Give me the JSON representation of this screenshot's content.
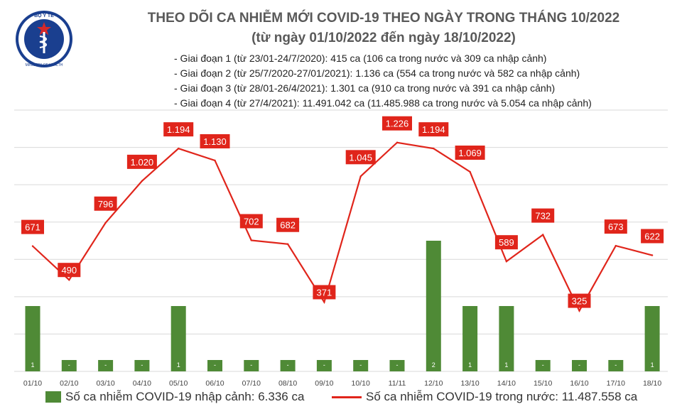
{
  "header": {
    "title_line1": "THEO DÕI CA NHIỄM MỚI COVID-19 THEO NGÀY TRONG THÁNG 10/2022",
    "title_line2": "(từ ngày 01/10/2022 đến ngày 18/10/2022)",
    "notes": [
      "- Giai đoạn 1 (từ 23/01-24/7/2020): 415 ca (106 ca trong nước và 309 ca nhập cảnh)",
      "- Giai đoạn 2 (từ 25/7/2020-27/01/2021): 1.136 ca (554 ca trong nước và 582 ca nhập cảnh)",
      "- Giai đoạn 3 (từ 28/01-26/4/2021): 1.301 ca (910 ca trong nước và 391 ca nhập cảnh)",
      "- Giai đoạn 4 (từ 27/4/2021): 11.491.042 ca (11.485.988 ca trong nước và 5.054 ca nhập cảnh)"
    ]
  },
  "logo": {
    "top_text": "BỘ Y TẾ",
    "bottom_text": "MINISTRY OF HEALTH"
  },
  "chart_data": {
    "type": "bar",
    "categories": [
      "01/10",
      "02/10",
      "03/10",
      "04/10",
      "05/10",
      "06/10",
      "07/10",
      "08/10",
      "09/10",
      "10/10",
      "11/11",
      "12/10",
      "13/10",
      "14/10",
      "15/10",
      "16/10",
      "17/10",
      "18/10"
    ],
    "series": [
      {
        "name": "Số ca nhiễm COVID-19 nhập cảnh: 6.336 ca",
        "type": "bar",
        "axis": "right",
        "values": [
          1,
          0,
          0,
          0,
          1,
          0,
          0,
          0,
          0,
          0,
          0,
          2,
          1,
          1,
          0,
          0,
          0,
          1
        ],
        "labels": [
          "1",
          "-",
          "-",
          "-",
          "1",
          "-",
          "-",
          "-",
          "-",
          "-",
          "-",
          "2",
          "1",
          "1",
          "-",
          "-",
          "-",
          "1"
        ],
        "color": "#4f8a36"
      },
      {
        "name": "Số ca nhiễm COVID-19 trong nước: 11.487.558 ca",
        "type": "line",
        "axis": "left",
        "values": [
          671,
          490,
          796,
          1020,
          1194,
          1130,
          702,
          682,
          371,
          1045,
          1226,
          1194,
          1069,
          589,
          732,
          325,
          673,
          622
        ],
        "labels": [
          "671",
          "490",
          "796",
          "1.020",
          "1.194",
          "1.130",
          "702",
          "682",
          "371",
          "1.045",
          "1.226",
          "1.194",
          "1.069",
          "589",
          "732",
          "325",
          "673",
          "622"
        ],
        "color": "#e0251b"
      }
    ],
    "ylim_left": [
      0,
      1400
    ],
    "ylim_right": [
      0,
      4
    ],
    "grid": true,
    "legend": "bottom"
  }
}
